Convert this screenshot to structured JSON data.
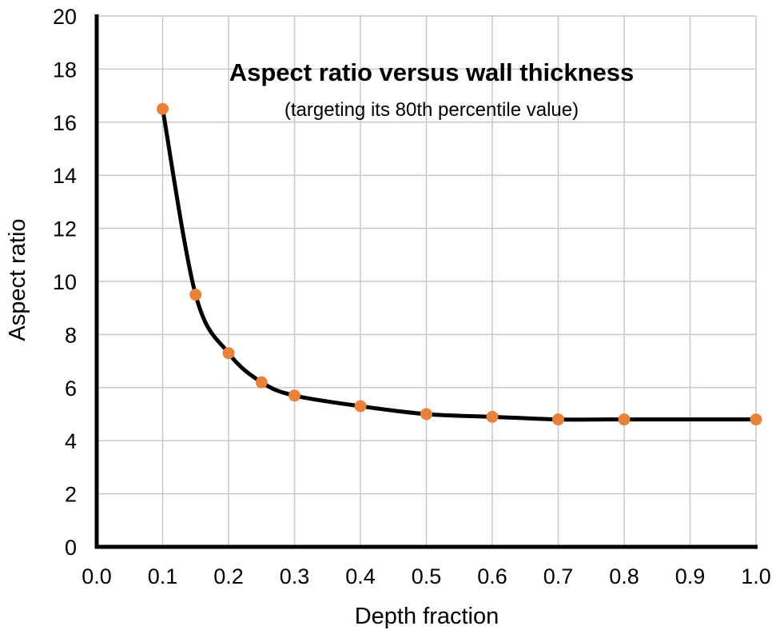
{
  "chart_data": {
    "type": "line",
    "title": "Aspect ratio versus wall thickness",
    "subtitle": "(targeting its 80th percentile value)",
    "xlabel": "Depth fraction",
    "ylabel": "Aspect ratio",
    "xlim": [
      0.0,
      1.0
    ],
    "ylim": [
      0,
      20
    ],
    "x_ticks": [
      "0.0",
      "0.1",
      "0.2",
      "0.3",
      "0.4",
      "0.5",
      "0.6",
      "0.7",
      "0.8",
      "0.9",
      "1.0"
    ],
    "y_ticks": [
      "0",
      "2",
      "4",
      "6",
      "8",
      "10",
      "12",
      "14",
      "16",
      "18",
      "20"
    ],
    "grid": true,
    "legend": "none",
    "series": [
      {
        "x": [
          0.1,
          0.15,
          0.2,
          0.25,
          0.3,
          0.4,
          0.5,
          0.6,
          0.7,
          0.8,
          1.0
        ],
        "y": [
          16.5,
          9.5,
          7.3,
          6.2,
          5.7,
          5.3,
          5.0,
          4.9,
          4.8,
          4.8,
          4.8
        ],
        "line_color": "#000000",
        "marker_color": "#e8823a"
      }
    ],
    "colors": {
      "grid": "#c8c8c8",
      "axis": "#000000"
    }
  }
}
